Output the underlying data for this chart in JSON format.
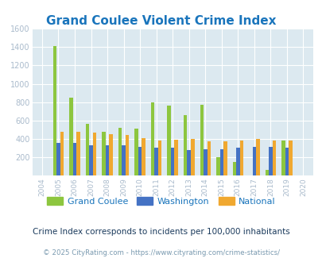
{
  "title": "Grand Coulee Violent Crime Index",
  "years": [
    2004,
    2005,
    2006,
    2007,
    2008,
    2009,
    2010,
    2011,
    2012,
    2013,
    2014,
    2015,
    2016,
    2017,
    2018,
    2019,
    2020
  ],
  "grand_coulee": [
    0,
    1410,
    850,
    560,
    480,
    520,
    510,
    800,
    760,
    660,
    775,
    200,
    145,
    0,
    60,
    385,
    0
  ],
  "washington": [
    0,
    355,
    355,
    330,
    330,
    330,
    310,
    305,
    300,
    278,
    290,
    290,
    300,
    310,
    310,
    300,
    0
  ],
  "national": [
    0,
    475,
    475,
    465,
    455,
    445,
    405,
    385,
    390,
    400,
    375,
    375,
    385,
    395,
    380,
    380,
    0
  ],
  "colors": {
    "grand_coulee": "#8dc63f",
    "washington": "#4472c4",
    "national": "#f0a830"
  },
  "ylim": [
    0,
    1600
  ],
  "yticks": [
    0,
    200,
    400,
    600,
    800,
    1000,
    1200,
    1400,
    1600
  ],
  "bg_color": "#dce9f0",
  "grid_color": "#ffffff",
  "legend_labels": [
    "Grand Coulee",
    "Washington",
    "National"
  ],
  "subtitle": "Crime Index corresponds to incidents per 100,000 inhabitants",
  "footer": "© 2025 CityRating.com - https://www.cityrating.com/crime-statistics/",
  "title_color": "#1a75bc",
  "subtitle_color": "#1a3a5c",
  "footer_color": "#7a9ab0"
}
